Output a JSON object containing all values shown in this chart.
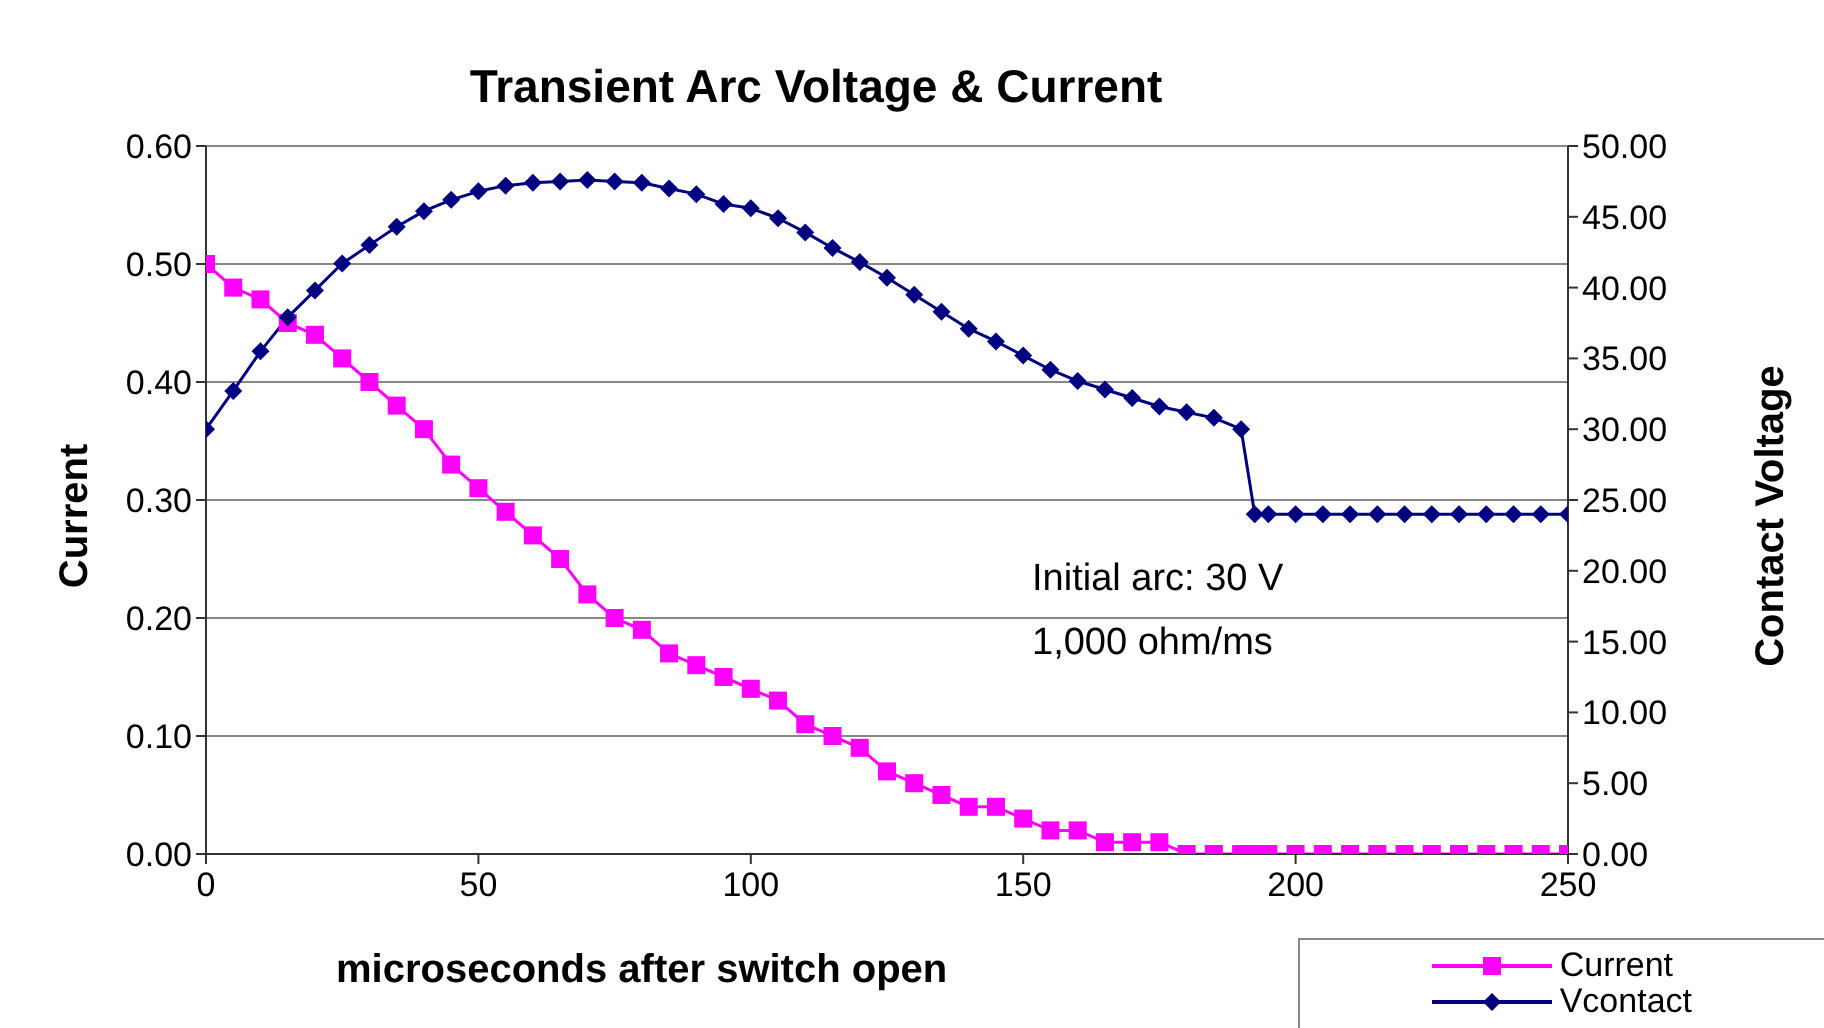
{
  "chart_data": {
    "type": "line",
    "title": "Transient Arc Voltage & Current",
    "xlabel": "microseconds after switch open",
    "ylabel": "Current",
    "y2label": "Contact Voltage",
    "annotations": [
      "Initial arc: 30 V",
      "1,000 ohm/ms"
    ],
    "x": [
      0,
      5,
      10,
      15,
      20,
      25,
      30,
      35,
      40,
      45,
      50,
      55,
      60,
      65,
      70,
      75,
      80,
      85,
      90,
      95,
      100,
      105,
      110,
      115,
      120,
      125,
      130,
      135,
      140,
      145,
      150,
      155,
      160,
      165,
      170,
      175,
      180,
      185,
      190,
      192.5,
      195,
      200,
      205,
      210,
      215,
      220,
      225,
      230,
      235,
      240,
      245,
      250
    ],
    "series": [
      {
        "name": "Current",
        "color": "#ff00ff",
        "marker": "square",
        "values": [
          0.5,
          0.48,
          0.47,
          0.45,
          0.44,
          0.42,
          0.4,
          0.38,
          0.36,
          0.33,
          0.31,
          0.29,
          0.27,
          0.25,
          0.22,
          0.2,
          0.19,
          0.17,
          0.16,
          0.15,
          0.14,
          0.13,
          0.11,
          0.1,
          0.09,
          0.07,
          0.06,
          0.05,
          0.04,
          0.04,
          0.03,
          0.02,
          0.02,
          0.01,
          0.01,
          0.01,
          0,
          0,
          0,
          0,
          0,
          0,
          0,
          0,
          0,
          0,
          0,
          0,
          0,
          0,
          0,
          0
        ]
      },
      {
        "name": "Vcontact",
        "color": "#000080",
        "marker": "diamond",
        "axis": "y2",
        "values": [
          30,
          32.7,
          35.5,
          37.9,
          39.8,
          41.7,
          43,
          44.3,
          45.4,
          46.2,
          46.8,
          47.2,
          47.4,
          47.5,
          47.6,
          47.5,
          47.4,
          47,
          46.6,
          45.9,
          45.6,
          44.9,
          43.9,
          42.8,
          41.8,
          40.7,
          39.5,
          38.3,
          37.1,
          36.2,
          35.2,
          34.2,
          33.4,
          32.8,
          32.2,
          31.6,
          31.2,
          30.8,
          30,
          24,
          24,
          24,
          24,
          24,
          24,
          24,
          24,
          24,
          24,
          24,
          24,
          24
        ]
      }
    ],
    "xlim": [
      0,
      250
    ],
    "xticks": [
      0,
      50,
      100,
      150,
      200,
      250
    ],
    "ylim": [
      0,
      0.6
    ],
    "yticks": [
      {
        "value": 0,
        "label": "0.00"
      },
      {
        "value": 0.1,
        "label": "0.10"
      },
      {
        "value": 0.2,
        "label": "0.20"
      },
      {
        "value": 0.3,
        "label": "0.30"
      },
      {
        "value": 0.4,
        "label": "0.40"
      },
      {
        "value": 0.5,
        "label": "0.50"
      },
      {
        "value": 0.6,
        "label": "0.60"
      }
    ],
    "y2lim": [
      0,
      50
    ],
    "y2ticks": [
      {
        "value": 0,
        "label": "0.00"
      },
      {
        "value": 5,
        "label": "5.00"
      },
      {
        "value": 10,
        "label": "10.00"
      },
      {
        "value": 15,
        "label": "15.00"
      },
      {
        "value": 20,
        "label": "20.00"
      },
      {
        "value": 25,
        "label": "25.00"
      },
      {
        "value": 30,
        "label": "30.00"
      },
      {
        "value": 35,
        "label": "35.00"
      },
      {
        "value": 40,
        "label": "40.00"
      },
      {
        "value": 45,
        "label": "45.00"
      },
      {
        "value": 50,
        "label": "50.00"
      }
    ],
    "grid": "y",
    "legend": "bottom right"
  }
}
